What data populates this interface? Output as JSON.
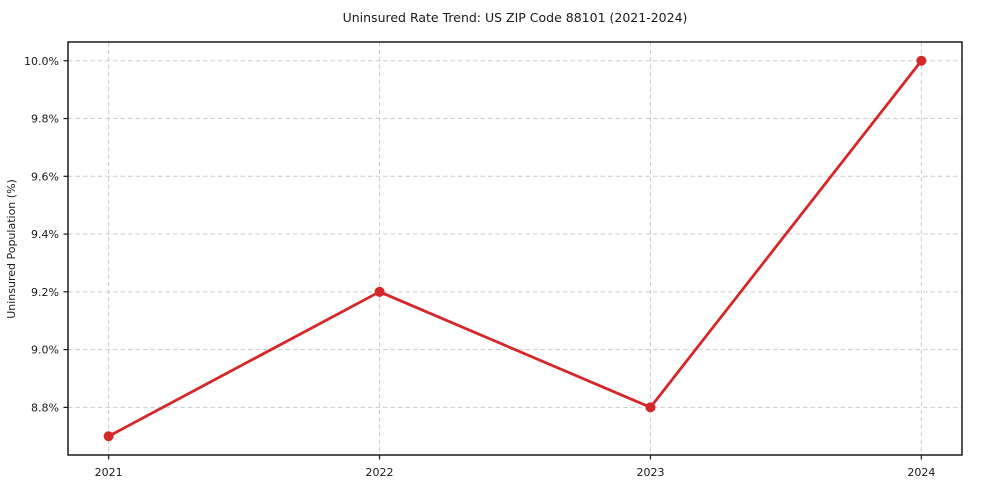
{
  "chart_data": {
    "type": "line",
    "title": "Uninsured Rate Trend: US ZIP Code 88101 (2021-2024)",
    "xlabel": "",
    "ylabel": "Uninsured Population (%)",
    "categories": [
      "2021",
      "2022",
      "2023",
      "2024"
    ],
    "x": [
      2021,
      2022,
      2023,
      2024
    ],
    "values": [
      8.7,
      9.2,
      8.8,
      10.0
    ],
    "ytick_values": [
      8.8,
      9.0,
      9.2,
      9.4,
      9.6,
      9.8,
      10.0
    ],
    "ytick_labels": [
      "8.8%",
      "9.0%",
      "9.2%",
      "9.4%",
      "9.6%",
      "9.8%",
      "10.0%"
    ],
    "xlim": [
      2020.85,
      2024.15
    ],
    "ylim": [
      8.635,
      10.065
    ],
    "grid": true,
    "grid_style": "dashed",
    "legend": false,
    "colors": {
      "line": "#d62728",
      "marker": "#d62728",
      "grid": "#cccccc",
      "spine": "#1a1a1a",
      "text": "#1a1a1a",
      "background": "#ffffff"
    }
  }
}
